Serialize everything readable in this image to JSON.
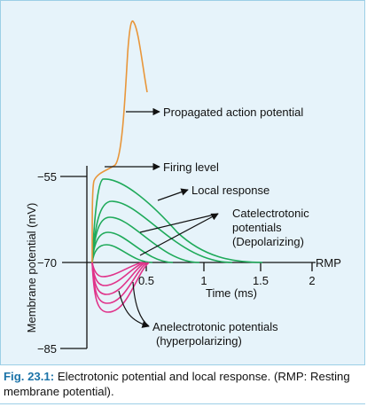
{
  "figure": {
    "y_axis_label": "Membrane potential (mV)",
    "x_axis_label": "Time (ms)",
    "y_ticks": [
      "−55",
      "−70",
      "−85"
    ],
    "x_ticks": [
      "0.5",
      "1",
      "1.5",
      "2"
    ],
    "rmp_label": "RMP",
    "annotations": {
      "propagated": "Propagated action potential",
      "firing_level": "Firing level",
      "local_response": "Local response",
      "catel_1": "Catelectrotonic",
      "catel_2": "potentials",
      "catel_3": "(Depolarizing)",
      "anel_1": "Anelectrotonic potentials",
      "anel_2": "(hyperpolarizing)"
    },
    "colors": {
      "action_potential": "#e8963a",
      "catelectrotonic": "#1faa5a",
      "anelectrotonic": "#e0338a",
      "axis": "#111111",
      "caption_label": "#1b73a8"
    }
  },
  "caption": {
    "label": "Fig. 23.1:",
    "text": "Electrotonic potential and local response. (RMP: Resting membrane potential)."
  }
}
